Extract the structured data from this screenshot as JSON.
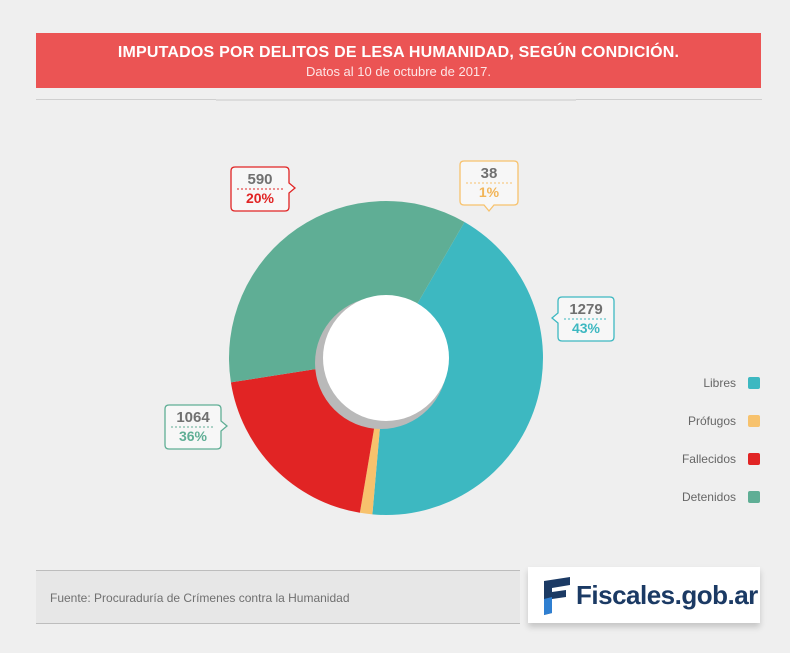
{
  "header": {
    "title": "IMPUTADOS POR DELITOS DE LESA HUMANIDAD, SEGÚN CONDICIÓN.",
    "subtitle": "Datos al 10 de octubre de 2017."
  },
  "chart_data": {
    "type": "pie",
    "donut": true,
    "title": "IMPUTADOS POR DELITOS DE LESA HUMANIDAD, SEGÚN CONDICIÓN.",
    "subtitle": "Datos al 10 de octubre de 2017.",
    "legend_position": "right",
    "slices": [
      {
        "name": "Libres",
        "value": 1279,
        "percent_label": "43%",
        "color": "#3db8c1"
      },
      {
        "name": "Prófugos",
        "value": 38,
        "percent_label": "1%",
        "color": "#f7c26d"
      },
      {
        "name": "Fallecidos",
        "value": 590,
        "percent_label": "20%",
        "color": "#e12424"
      },
      {
        "name": "Detenidos",
        "value": 1064,
        "percent_label": "36%",
        "color": "#5fae95"
      }
    ]
  },
  "source": {
    "text": "Fuente: Procuraduría de Crímenes contra la Humanidad"
  },
  "logo": {
    "text": "Fiscales.gob.ar",
    "text_color": "#1b3a64"
  }
}
